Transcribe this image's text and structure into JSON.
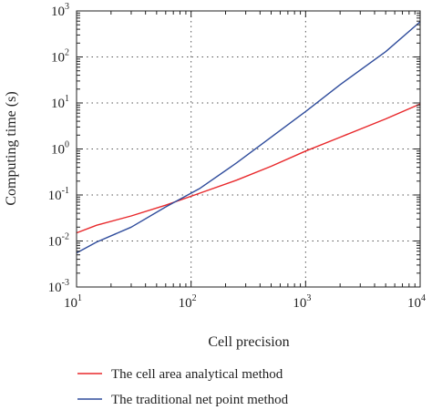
{
  "chart_data": {
    "type": "line",
    "xlabel": "Cell precision",
    "ylabel": "Computing time (s)",
    "xscale": "log",
    "yscale": "log",
    "xlim": [
      10,
      10000
    ],
    "ylim": [
      0.001,
      1000
    ],
    "grid": "dotted at major decades",
    "legend_position": "bottom, below plot",
    "x_ticks": [
      {
        "base": "10",
        "exp": "1",
        "value": 10
      },
      {
        "base": "10",
        "exp": "2",
        "value": 100
      },
      {
        "base": "10",
        "exp": "3",
        "value": 1000
      },
      {
        "base": "10",
        "exp": "4",
        "value": 10000
      }
    ],
    "y_ticks": [
      {
        "base": "10",
        "exp": "-3",
        "value": 0.001
      },
      {
        "base": "10",
        "exp": "-2",
        "value": 0.01
      },
      {
        "base": "10",
        "exp": "-1",
        "value": 0.1
      },
      {
        "base": "10",
        "exp": "0",
        "value": 1
      },
      {
        "base": "10",
        "exp": "1",
        "value": 10
      },
      {
        "base": "10",
        "exp": "2",
        "value": 100
      },
      {
        "base": "10",
        "exp": "3",
        "value": 1000
      }
    ],
    "series": [
      {
        "name": "The cell area analytical method",
        "color": "#e8282b",
        "x": [
          10,
          15,
          30,
          60,
          120,
          250,
          500,
          1000,
          2000,
          5000,
          10000
        ],
        "y": [
          0.015,
          0.022,
          0.035,
          0.06,
          0.11,
          0.21,
          0.42,
          0.9,
          1.8,
          4.5,
          9.5
        ]
      },
      {
        "name": "The traditional net point method",
        "color": "#2f4c9c",
        "x": [
          10,
          15,
          30,
          60,
          120,
          250,
          500,
          1000,
          2000,
          5000,
          10000
        ],
        "y": [
          0.0055,
          0.0095,
          0.02,
          0.055,
          0.14,
          0.5,
          1.8,
          6.5,
          25,
          130,
          580
        ]
      }
    ]
  }
}
